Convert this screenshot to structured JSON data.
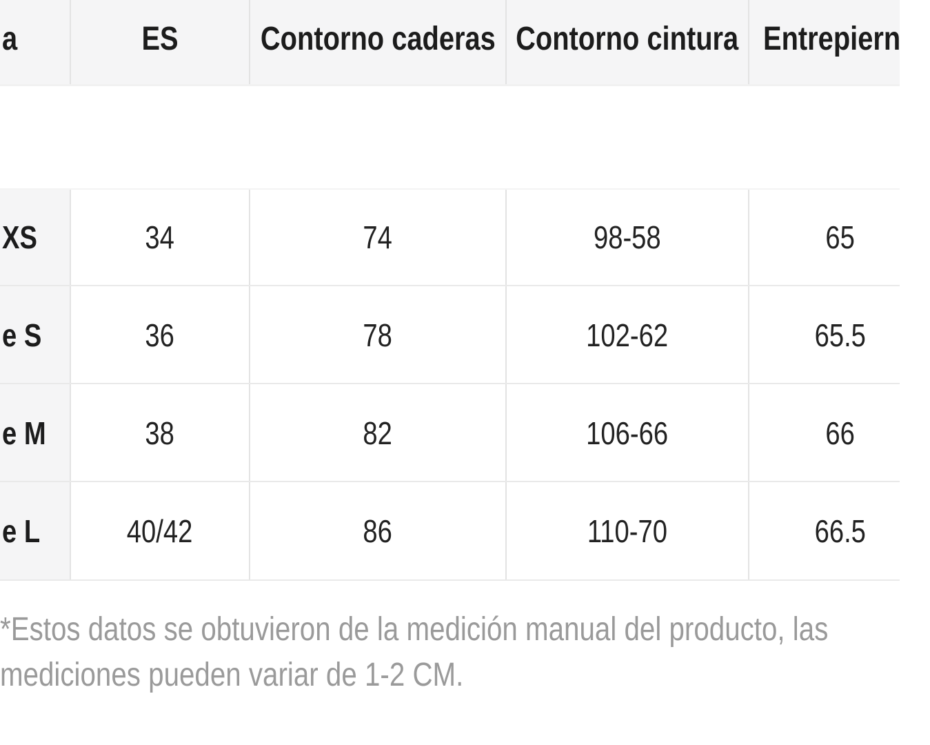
{
  "table": {
    "headers": [
      "a",
      "ES",
      "Contorno caderas",
      "Contorno cintura",
      "Entrepiern"
    ],
    "rows": [
      {
        "cells": [
          "XS",
          "34",
          "74",
          "98-58",
          "65"
        ]
      },
      {
        "cells": [
          "e S",
          "36",
          "78",
          "102-62",
          "65.5"
        ]
      },
      {
        "cells": [
          "e M",
          "38",
          "82",
          "106-66",
          "66"
        ]
      },
      {
        "cells": [
          "e L",
          "40/42",
          "86",
          "110-70",
          "66.5"
        ]
      }
    ]
  },
  "footnote": {
    "line1": "*Estos datos se obtuvieron de la medición manual del producto, las",
    "line2": "mediciones pueden variar de 1-2 CM."
  },
  "colors": {
    "header_bg": "#f5f5f6",
    "vertical_border": "#e3e3e3",
    "horizontal_border": "#e9e9e9",
    "text": "#1e1e1e",
    "footnote_text": "#9a9a9a",
    "background": "#ffffff"
  }
}
